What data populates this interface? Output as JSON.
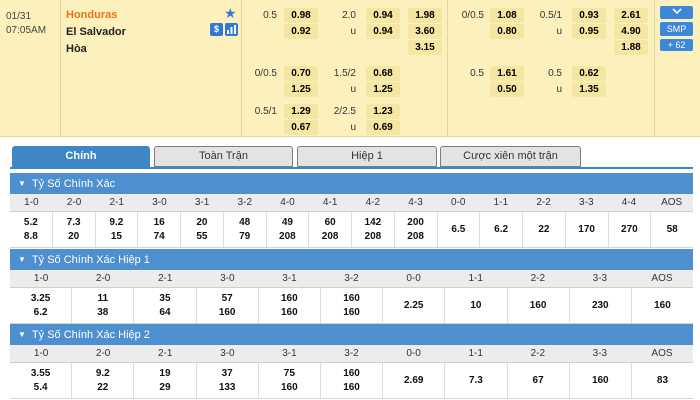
{
  "match": {
    "date": "01/31",
    "time": "07:05AM",
    "home": "Honduras",
    "away": "El Salvador",
    "draw": "Hòa",
    "badge_s": "$",
    "smp_label": "SMP",
    "more_label": "+ 62",
    "expand_icon": "chevron-down"
  },
  "odds": {
    "hdp_row1": {
      "line": "0.5",
      "home": "0.98",
      "away": "0.92"
    },
    "ou_row1": {
      "line": "2.0",
      "over": "0.94",
      "u": "u",
      "under": "0.94"
    },
    "x12_full": [
      "1.98",
      "3.60",
      "3.15"
    ],
    "hdp_row2": {
      "line": "0/0.5",
      "home": "0.70",
      "away": "1.25"
    },
    "ou_row2": {
      "line": "1.5/2",
      "over": "0.68",
      "u": "u",
      "under": "1.25"
    },
    "hdp_row3": {
      "line": "0.5/1",
      "home": "1.29",
      "away": "0.67"
    },
    "ou_row3": {
      "line": "2/2.5",
      "over": "1.23",
      "u": "u",
      "under": "0.69"
    },
    "h1_hdp_row1": {
      "line": "0/0.5",
      "home": "1.08",
      "away": "0.80"
    },
    "h1_ou_row1": {
      "line": "0.5/1",
      "over": "0.93",
      "u": "u",
      "under": "0.95"
    },
    "x12_half": [
      "2.61",
      "4.90",
      "1.88"
    ],
    "h1_hdp_row2": {
      "line": "0.5",
      "home": "1.61",
      "away": "0.50"
    },
    "h1_ou_row2": {
      "line": "0.5",
      "over": "0.62",
      "u": "u",
      "under": "1.35"
    }
  },
  "tabs": [
    "Chính",
    "Toàn Trận",
    "Hiệp 1",
    "Cược xiên một trận"
  ],
  "tables": [
    {
      "title": "Tỷ Số Chính Xác",
      "headers": [
        "1-0",
        "2-0",
        "2-1",
        "3-0",
        "3-1",
        "3-2",
        "4-0",
        "4-1",
        "4-2",
        "4-3",
        "0-0",
        "1-1",
        "2-2",
        "3-3",
        "4-4",
        "AOS"
      ],
      "values": [
        [
          "5.2",
          "8.8"
        ],
        [
          "7.3",
          "20"
        ],
        [
          "9.2",
          "15"
        ],
        [
          "16",
          "74"
        ],
        [
          "20",
          "55"
        ],
        [
          "48",
          "79"
        ],
        [
          "49",
          "208"
        ],
        [
          "60",
          "208"
        ],
        [
          "142",
          "208"
        ],
        [
          "200",
          "208"
        ],
        [
          "6.5"
        ],
        [
          "6.2"
        ],
        [
          "22"
        ],
        [
          "170"
        ],
        [
          "270"
        ],
        [
          "58"
        ]
      ]
    },
    {
      "title": "Tỷ Số Chính Xác Hiệp 1",
      "headers": [
        "1-0",
        "2-0",
        "2-1",
        "3-0",
        "3-1",
        "3-2",
        "0-0",
        "1-1",
        "2-2",
        "3-3",
        "AOS"
      ],
      "values": [
        [
          "3.25",
          "6.2"
        ],
        [
          "11",
          "38"
        ],
        [
          "35",
          "64"
        ],
        [
          "57",
          "160"
        ],
        [
          "160",
          "160"
        ],
        [
          "160",
          "160"
        ],
        [
          "2.25"
        ],
        [
          "10"
        ],
        [
          "160"
        ],
        [
          "230"
        ],
        [
          "160"
        ]
      ]
    },
    {
      "title": "Tỷ Số Chính Xác Hiệp 2",
      "headers": [
        "1-0",
        "2-0",
        "2-1",
        "3-0",
        "3-1",
        "3-2",
        "0-0",
        "1-1",
        "2-2",
        "3-3",
        "AOS"
      ],
      "values": [
        [
          "3.55",
          "5.4"
        ],
        [
          "9.2",
          "22"
        ],
        [
          "19",
          "29"
        ],
        [
          "37",
          "133"
        ],
        [
          "75",
          "160"
        ],
        [
          "160",
          "160"
        ],
        [
          "2.69"
        ],
        [
          "7.3"
        ],
        [
          "67"
        ],
        [
          "160"
        ],
        [
          "83"
        ]
      ]
    }
  ]
}
